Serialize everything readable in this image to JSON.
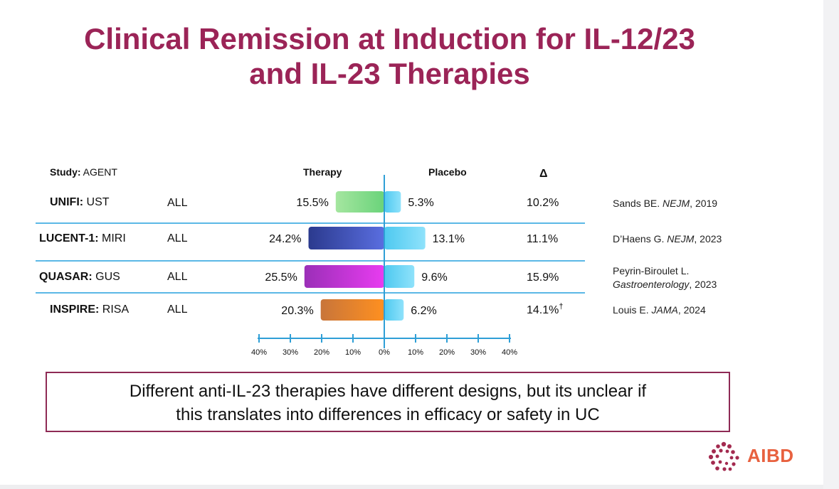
{
  "title_line1": "Clinical Remission at Induction for IL-12/23",
  "title_line2": "and IL-23 Therapies",
  "headers": {
    "study_bold": "Study:",
    "study_rest": " AGENT",
    "therapy": "Therapy",
    "placebo": "Placebo",
    "delta": "Δ"
  },
  "rows": [
    {
      "trial": "UNIFI:",
      "agent": " UST",
      "population": "ALL",
      "therapy_label": "15.5%",
      "placebo_label": "5.3%",
      "delta": "10.2%",
      "dagger": "",
      "ref_author": "Sands BE. ",
      "ref_journal": "NEJM",
      "ref_year": ", 2019",
      "ref_line1": ""
    },
    {
      "trial": "LUCENT-1:",
      "agent": " MIRI",
      "population": "ALL",
      "therapy_label": "24.2%",
      "placebo_label": "13.1%",
      "delta": "11.1%",
      "dagger": "",
      "ref_author": "D’Haens G. ",
      "ref_journal": "NEJM",
      "ref_year": ", 2023",
      "ref_line1": ""
    },
    {
      "trial": "QUASAR:",
      "agent": " GUS",
      "population": "ALL",
      "therapy_label": "25.5%",
      "placebo_label": "9.6%",
      "delta": "15.9%",
      "dagger": "",
      "ref_author": "",
      "ref_journal": "Gastroenterology",
      "ref_year": ", 2023",
      "ref_line1": "Peyrin-Biroulet L."
    },
    {
      "trial": "INSPIRE:",
      "agent": " RISA",
      "population": "ALL",
      "therapy_label": "20.3%",
      "placebo_label": "6.2%",
      "delta": "14.1%",
      "dagger": "†",
      "ref_author": "Louis E. ",
      "ref_journal": "JAMA",
      "ref_year": ", 2024",
      "ref_line1": ""
    }
  ],
  "chart_data": {
    "type": "bar",
    "orientation": "horizontal-diverging",
    "categories": [
      "UNIFI: UST",
      "LUCENT-1: MIRI",
      "QUASAR: GUS",
      "INSPIRE: RISA"
    ],
    "series": [
      {
        "name": "Therapy",
        "values": [
          15.5,
          24.2,
          25.5,
          20.3
        ],
        "colors": [
          [
            "#a5e6a0",
            "#6ad37a"
          ],
          [
            "#2b3a8e",
            "#5a6ee0"
          ],
          [
            "#9b2fb8",
            "#e83cf0"
          ],
          [
            "#c8753a",
            "#ff9020"
          ]
        ]
      },
      {
        "name": "Placebo",
        "values": [
          5.3,
          13.1,
          9.6,
          6.2
        ],
        "colors": [
          [
            "#4ec9f0",
            "#8fe2fb"
          ]
        ]
      }
    ],
    "xlim": [
      -40,
      40
    ],
    "axis_ticks": [
      {
        "value": -40,
        "label": "40%"
      },
      {
        "value": -30,
        "label": "30%"
      },
      {
        "value": -20,
        "label": "20%"
      },
      {
        "value": -10,
        "label": "10%"
      },
      {
        "value": 0,
        "label": "0%"
      },
      {
        "value": 10,
        "label": "10%"
      },
      {
        "value": 20,
        "label": "20%"
      },
      {
        "value": 30,
        "label": "30%"
      },
      {
        "value": 40,
        "label": "40%"
      }
    ],
    "axis_color": "#2f9fd6"
  },
  "footer_note_line1": "Different anti-IL-23 therapies have different designs, but its unclear if",
  "footer_note_line2": "this translates into differences in efficacy or safety in UC",
  "logo_text": "AIBD",
  "colors": {
    "title": "#9b2457",
    "logo": "#e8613f",
    "frame": "#8e2a55"
  }
}
